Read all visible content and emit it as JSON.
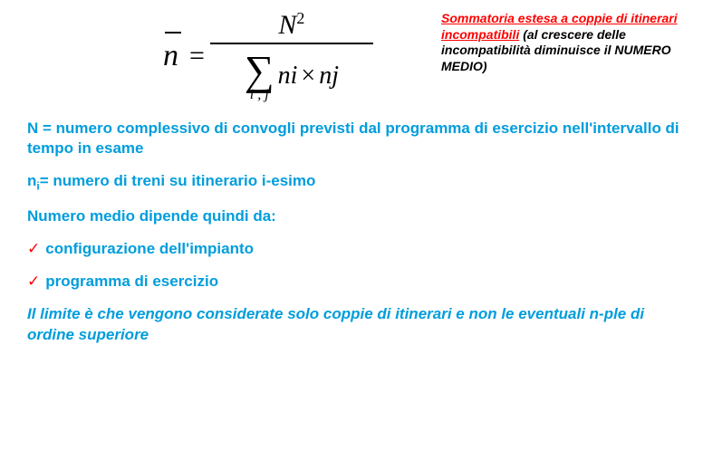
{
  "formula": {
    "lhs_symbol": "n",
    "equals": "=",
    "numerator_base": "N",
    "numerator_exp": "2",
    "sigma": "∑",
    "sigma_sub": "i , j",
    "denom_expr_a": "ni",
    "denom_times": "×",
    "denom_expr_b": "nj"
  },
  "side_note": {
    "red": "Sommatoria estesa a coppie di itinerari incompatibili",
    "rest": " (al crescere delle incompatibilità diminuisce il NUMERO MEDIO)"
  },
  "defs": {
    "N": "N = numero complessivo di convogli previsti dal programma di esercizio nell'intervallo di tempo in esame",
    "ni_prefix": "n",
    "ni_sub": "i",
    "ni_rest": "= numero di treni su itinerario i-esimo",
    "dep": "Numero medio  dipende quindi da:",
    "item1": "configurazione dell'impianto",
    "item2": "programma di esercizio",
    "limit": "Il limite è che vengono considerate solo coppie di itinerari e non le eventuali n-ple di ordine superiore"
  },
  "style": {
    "accent_color": "#009ddc",
    "check_color": "#ff0000",
    "note_red": "#ff0000",
    "bg": "#ffffff"
  }
}
